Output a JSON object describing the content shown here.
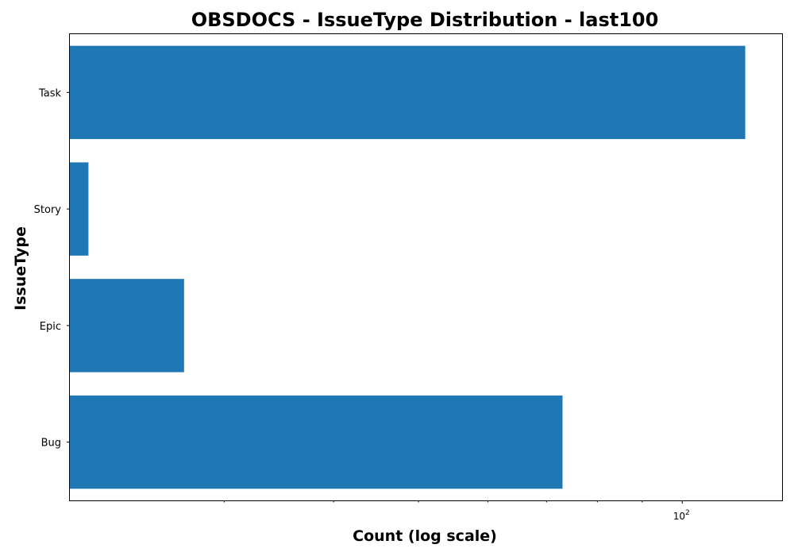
{
  "chart_data": {
    "type": "bar",
    "orientation": "horizontal",
    "title": "OBSDOCS - IssueType Distribution - last100",
    "xlabel": "Count (log scale)",
    "ylabel": "IssueType",
    "x_scale": "log",
    "xlim": [
      20,
      130
    ],
    "categories": [
      "Task",
      "Story",
      "Epic",
      "Bug"
    ],
    "values": [
      118,
      21,
      27,
      73
    ],
    "x_major_ticks": [
      100
    ],
    "x_major_tick_labels": [
      {
        "base": "10",
        "exponent": "2"
      }
    ],
    "x_minor_ticks": [
      30,
      40,
      50,
      60,
      70,
      80,
      90
    ],
    "grid": false,
    "colors": {
      "bar": "#1f77b4",
      "axis": "#000000",
      "background": "#ffffff"
    }
  }
}
